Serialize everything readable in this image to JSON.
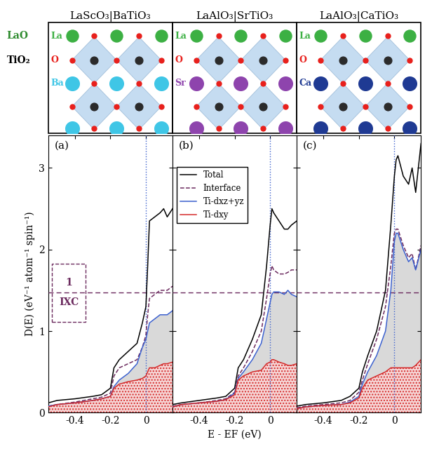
{
  "structures": [
    {
      "title": "LaScO₃|BaTiO₃",
      "atoms": [
        {
          "label": "La",
          "color": "#3cb043"
        },
        {
          "label": "O",
          "color": "#e8201c"
        },
        {
          "label": "Ba",
          "color": "#3fc6e6"
        }
      ]
    },
    {
      "title": "LaAlO₃|SrTiO₃",
      "atoms": [
        {
          "label": "La",
          "color": "#3cb043"
        },
        {
          "label": "O",
          "color": "#e8201c"
        },
        {
          "label": "Sr",
          "color": "#8e44ad"
        }
      ]
    },
    {
      "title": "LaAlO₃|CaTiO₃",
      "atoms": [
        {
          "label": "La",
          "color": "#3cb043"
        },
        {
          "label": "O",
          "color": "#e8201c"
        },
        {
          "label": "Ca",
          "color": "#1f3a93"
        }
      ]
    }
  ],
  "layer_labels": [
    {
      "text": "LaO",
      "color": "#2e8b2e"
    },
    {
      "text": "TiO₂",
      "color": "#000000"
    }
  ],
  "chart_data": [
    {
      "type": "line",
      "panel_label": "(a)",
      "x": [
        -0.55,
        -0.5,
        -0.4,
        -0.3,
        -0.25,
        -0.2,
        -0.18,
        -0.15,
        -0.1,
        -0.05,
        -0.02,
        0,
        0.01,
        0.02,
        0.05,
        0.08,
        0.1,
        0.12,
        0.15
      ],
      "xlim": [
        -0.55,
        0.15
      ],
      "xticks": [
        -0.4,
        -0.2,
        0
      ],
      "ylim": [
        0,
        3.4
      ],
      "yticks": [
        0,
        1,
        2,
        3
      ],
      "ylabel": "D(E) (eV⁻¹ atom⁻¹ spin⁻¹)",
      "hline": {
        "y": 1.47,
        "color": "#6b2a5e",
        "numerator": "1",
        "denominator": "IXC"
      },
      "vline": 0,
      "series": [
        {
          "name": "Total",
          "color": "#000000",
          "line_style": "solid",
          "values": [
            0.12,
            0.15,
            0.17,
            0.2,
            0.22,
            0.3,
            0.55,
            0.65,
            0.75,
            0.85,
            1.1,
            1.3,
            1.8,
            2.35,
            2.4,
            2.45,
            2.5,
            2.4,
            2.5
          ]
        },
        {
          "name": "Interface",
          "color": "#6b2a5e",
          "line_style": "dashed",
          "values": [
            0.08,
            0.1,
            0.13,
            0.17,
            0.19,
            0.24,
            0.45,
            0.55,
            0.6,
            0.65,
            0.8,
            0.95,
            1.2,
            1.4,
            1.45,
            1.5,
            1.5,
            1.5,
            1.55
          ]
        },
        {
          "name": "Ti-dxz+yz",
          "color": "#3a5fcd",
          "line_style": "solid",
          "values": [
            0.08,
            0.1,
            0.12,
            0.15,
            0.17,
            0.2,
            0.32,
            0.4,
            0.48,
            0.6,
            0.8,
            0.9,
            1.0,
            1.1,
            1.15,
            1.2,
            1.2,
            1.2,
            1.25
          ]
        },
        {
          "name": "Ti-dxy",
          "color": "#d42a2a",
          "line_style": "solid",
          "values": [
            0.07,
            0.1,
            0.12,
            0.15,
            0.17,
            0.2,
            0.3,
            0.35,
            0.38,
            0.4,
            0.42,
            0.45,
            0.5,
            0.55,
            0.55,
            0.58,
            0.6,
            0.6,
            0.62
          ]
        }
      ]
    },
    {
      "type": "line",
      "panel_label": "(b)",
      "tick_labels": "x",
      "legend": "upper left",
      "x": [
        -0.55,
        -0.5,
        -0.4,
        -0.3,
        -0.25,
        -0.2,
        -0.18,
        -0.15,
        -0.1,
        -0.05,
        -0.02,
        0,
        0.01,
        0.02,
        0.05,
        0.08,
        0.1,
        0.12,
        0.15
      ],
      "xlim": [
        -0.55,
        0.15
      ],
      "xticks": [
        -0.4,
        -0.2,
        0
      ],
      "ylim": [
        0,
        3.4
      ],
      "yticks": [
        0,
        1,
        2,
        3
      ],
      "xlabel": "E - EF (eV)",
      "hline": {
        "y": 1.47,
        "color": "#6b2a5e"
      },
      "vline": 0,
      "series": [
        {
          "name": "Total",
          "color": "#000000",
          "line_style": "solid",
          "values": [
            0.1,
            0.12,
            0.15,
            0.18,
            0.2,
            0.3,
            0.55,
            0.65,
            0.9,
            1.2,
            1.8,
            2.3,
            2.5,
            2.45,
            2.35,
            2.25,
            2.25,
            2.3,
            2.35
          ]
        },
        {
          "name": "Interface",
          "color": "#6b2a5e",
          "line_style": "dashed",
          "values": [
            0.08,
            0.1,
            0.12,
            0.15,
            0.17,
            0.25,
            0.45,
            0.55,
            0.75,
            1.0,
            1.4,
            1.7,
            1.8,
            1.75,
            1.7,
            1.7,
            1.72,
            1.75,
            1.75
          ]
        },
        {
          "name": "Ti-dxz+yz",
          "color": "#3a5fcd",
          "line_style": "solid",
          "values": [
            0.07,
            0.1,
            0.12,
            0.14,
            0.16,
            0.24,
            0.42,
            0.5,
            0.65,
            0.85,
            1.15,
            1.35,
            1.45,
            1.48,
            1.48,
            1.45,
            1.5,
            1.45,
            1.42
          ]
        },
        {
          "name": "Ti-dxy",
          "color": "#d42a2a",
          "line_style": "solid",
          "values": [
            0.07,
            0.1,
            0.12,
            0.14,
            0.16,
            0.22,
            0.4,
            0.45,
            0.5,
            0.52,
            0.6,
            0.62,
            0.65,
            0.65,
            0.62,
            0.6,
            0.58,
            0.58,
            0.6
          ]
        }
      ]
    },
    {
      "type": "line",
      "panel_label": "(c)",
      "tick_labels": "x",
      "x": [
        -0.55,
        -0.5,
        -0.4,
        -0.3,
        -0.25,
        -0.2,
        -0.18,
        -0.15,
        -0.1,
        -0.05,
        -0.02,
        0,
        0.01,
        0.02,
        0.05,
        0.08,
        0.1,
        0.12,
        0.15
      ],
      "xlim": [
        -0.55,
        0.15
      ],
      "xticks": [
        -0.4,
        -0.2,
        0
      ],
      "ylim": [
        0,
        3.4
      ],
      "yticks": [
        0,
        1,
        2,
        3
      ],
      "hline": {
        "y": 1.47,
        "color": "#6b2a5e"
      },
      "vline": 0,
      "series": [
        {
          "name": "Total",
          "color": "#000000",
          "line_style": "solid",
          "values": [
            0.08,
            0.1,
            0.12,
            0.15,
            0.2,
            0.3,
            0.5,
            0.7,
            1.0,
            1.5,
            2.3,
            2.9,
            3.1,
            3.15,
            2.9,
            2.8,
            3.0,
            2.7,
            3.3
          ]
        },
        {
          "name": "Interface",
          "color": "#6b2a5e",
          "line_style": "dashed",
          "values": [
            0.06,
            0.08,
            0.1,
            0.12,
            0.15,
            0.25,
            0.4,
            0.6,
            0.9,
            1.3,
            1.8,
            2.2,
            2.25,
            2.25,
            2.05,
            1.9,
            1.95,
            1.75,
            2.05
          ]
        },
        {
          "name": "Ti-dxz+yz",
          "color": "#3a5fcd",
          "line_style": "solid",
          "values": [
            0.05,
            0.07,
            0.09,
            0.1,
            0.13,
            0.2,
            0.35,
            0.5,
            0.7,
            1.0,
            1.5,
            2.1,
            2.2,
            2.2,
            2.0,
            1.85,
            1.9,
            1.75,
            2.0
          ]
        },
        {
          "name": "Ti-dxy",
          "color": "#d42a2a",
          "line_style": "solid",
          "values": [
            0.05,
            0.07,
            0.09,
            0.1,
            0.12,
            0.18,
            0.3,
            0.4,
            0.45,
            0.5,
            0.55,
            0.55,
            0.55,
            0.55,
            0.55,
            0.55,
            0.55,
            0.58,
            0.65
          ]
        }
      ]
    }
  ]
}
